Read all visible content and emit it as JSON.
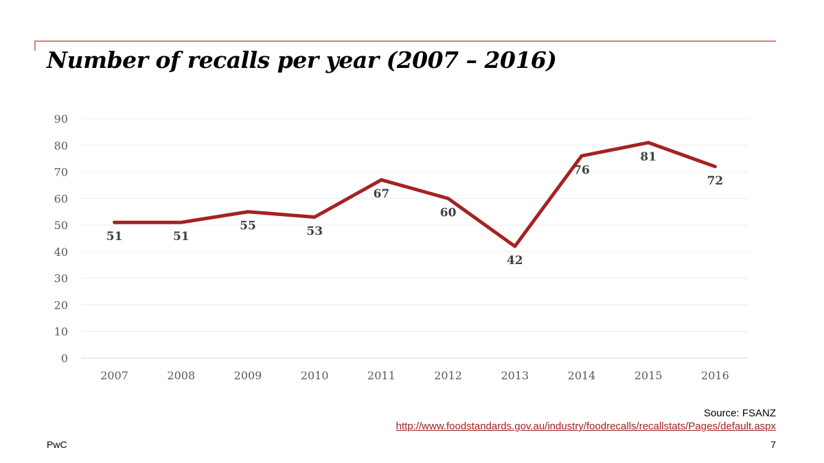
{
  "chart_data": {
    "type": "line",
    "title": "Number of recalls per year (2007 – 2016)",
    "categories": [
      "2007",
      "2008",
      "2009",
      "2010",
      "2011",
      "2012",
      "2013",
      "2014",
      "2015",
      "2016"
    ],
    "values": [
      51,
      51,
      55,
      53,
      67,
      60,
      42,
      76,
      81,
      72
    ],
    "data_labels": [
      "51",
      "51",
      "55",
      "53",
      "67",
      "60",
      "42",
      "76",
      "81",
      "72"
    ],
    "ylim": [
      0,
      90
    ],
    "yticks": [
      "0",
      "10",
      "20",
      "30",
      "40",
      "50",
      "60",
      "70",
      "80",
      "90"
    ],
    "grid": true,
    "legend": "none",
    "line_color": "#a52222",
    "xlabel": "",
    "ylabel": ""
  },
  "source": "Source:  FSANZ",
  "source_url": "http://www.foodstandards.gov.au/industry/foodrecalls/recallstats/Pages/default.aspx",
  "footer_left": "PwC",
  "page_number": "7"
}
